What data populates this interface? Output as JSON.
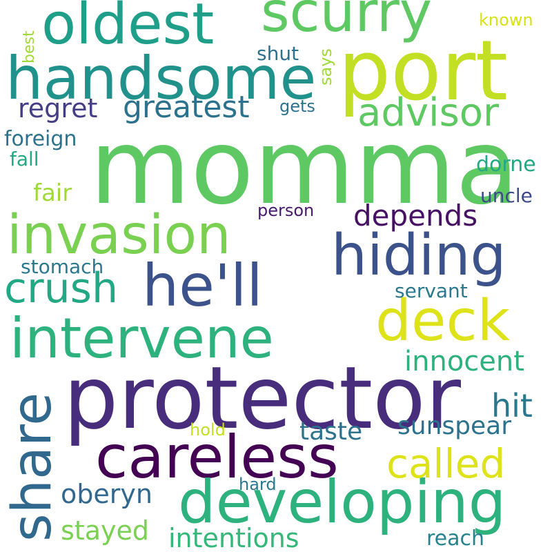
{
  "palette": {
    "dark_purple": "#440154",
    "purple": "#482878",
    "indigo": "#3e4989",
    "blue": "#31688e",
    "teal_blue": "#26828e",
    "teal": "#1f9e89",
    "green": "#35b779",
    "light_green": "#6ece58",
    "lime": "#b5de2b",
    "yellow": "#fde725"
  },
  "words": [
    {
      "text": "momma",
      "color": "#5ec962"
    },
    {
      "text": "protector",
      "color": "#472d7b"
    },
    {
      "text": "port",
      "color": "#c2df23"
    },
    {
      "text": "handsome",
      "color": "#21918c"
    },
    {
      "text": "oldest",
      "color": "#1f9e89"
    },
    {
      "text": "scurry",
      "color": "#5ec962"
    },
    {
      "text": "careless",
      "color": "#440154"
    },
    {
      "text": "developing",
      "color": "#2db27d"
    },
    {
      "text": "intervene",
      "color": "#2db27d"
    },
    {
      "text": "invasion",
      "color": "#7ad151"
    },
    {
      "text": "he'll",
      "color": "#3b528b"
    },
    {
      "text": "hiding",
      "color": "#3b528b"
    },
    {
      "text": "deck",
      "color": "#dde318"
    },
    {
      "text": "share",
      "color": "#31688e"
    },
    {
      "text": "crush",
      "color": "#22a884"
    },
    {
      "text": "advisor",
      "color": "#5ec962"
    },
    {
      "text": "greatest",
      "color": "#2c728e"
    },
    {
      "text": "regret",
      "color": "#433e85"
    },
    {
      "text": "called",
      "color": "#dde318"
    },
    {
      "text": "depends",
      "color": "#471164"
    },
    {
      "text": "innocent",
      "color": "#2db27d"
    },
    {
      "text": "hit",
      "color": "#2a788e"
    },
    {
      "text": "sunspear",
      "color": "#2c728e"
    },
    {
      "text": "taste",
      "color": "#2c728e"
    },
    {
      "text": "oberyn",
      "color": "#31688e"
    },
    {
      "text": "stayed",
      "color": "#7ad151"
    },
    {
      "text": "intentions",
      "color": "#35b779"
    },
    {
      "text": "reach",
      "color": "#26828e"
    },
    {
      "text": "dorne",
      "color": "#22a884"
    },
    {
      "text": "uncle",
      "color": "#3e4989"
    },
    {
      "text": "servant",
      "color": "#2a788e"
    },
    {
      "text": "fair",
      "color": "#a0da39"
    },
    {
      "text": "foreign",
      "color": "#2c728e"
    },
    {
      "text": "fall",
      "color": "#22a884"
    },
    {
      "text": "stomach",
      "color": "#2a788e"
    },
    {
      "text": "person",
      "color": "#481a6c"
    },
    {
      "text": "shut",
      "color": "#2c728e"
    },
    {
      "text": "gets",
      "color": "#2c728e"
    },
    {
      "text": "says",
      "color": "#a0da39"
    },
    {
      "text": "best",
      "color": "#a0da39"
    },
    {
      "text": "known",
      "color": "#d8e219"
    },
    {
      "text": "hold",
      "color": "#c2df23"
    },
    {
      "text": "hard",
      "color": "#2a788e"
    }
  ]
}
